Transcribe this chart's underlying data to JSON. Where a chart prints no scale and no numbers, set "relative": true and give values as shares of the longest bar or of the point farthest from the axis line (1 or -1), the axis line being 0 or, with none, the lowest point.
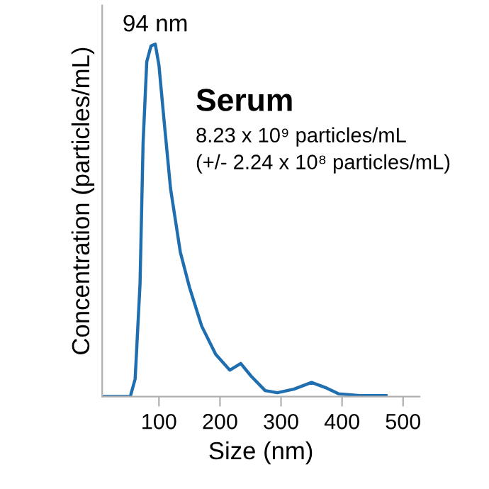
{
  "chart_data": {
    "type": "line",
    "relative": true,
    "xlabel": "Size (nm)",
    "ylabel": "Concentration (particles/mL)",
    "xlim": [
      7,
      527
    ],
    "xticks": [
      100,
      200,
      300,
      400,
      500
    ],
    "grid": false,
    "marker": "none",
    "line_style": "solid",
    "annotations": [
      {
        "text": "94 nm",
        "x": 94,
        "y": 1.0
      },
      "Serum",
      "8.23 x 10⁹ particles/mL",
      "(+/- 2.24 x 10⁸ particles/mL)"
    ],
    "series": [
      {
        "color": "#1f6eb0",
        "x": [
          7,
          53,
          61,
          69,
          74,
          80,
          87,
          94,
          100,
          108,
          119,
          135,
          150,
          170,
          193,
          216,
          234,
          251,
          274,
          294,
          321,
          350,
          375,
          394,
          429,
          472
        ],
        "values": [
          0,
          0,
          0.05,
          0.32,
          0.72,
          0.95,
          0.995,
          1.0,
          0.94,
          0.79,
          0.59,
          0.41,
          0.31,
          0.2,
          0.12,
          0.075,
          0.094,
          0.058,
          0.017,
          0.011,
          0.021,
          0.04,
          0.024,
          0.008,
          0.003,
          0.003
        ]
      }
    ]
  }
}
